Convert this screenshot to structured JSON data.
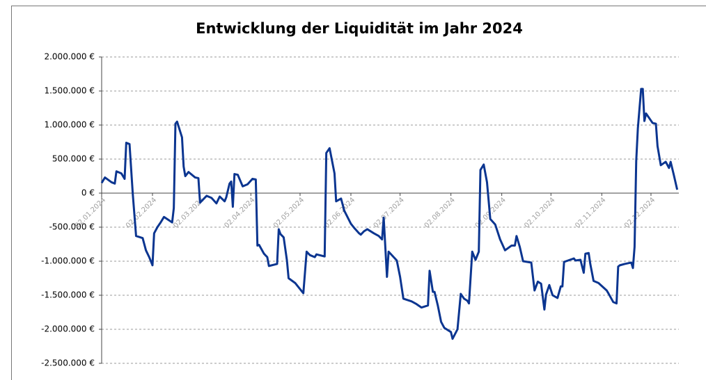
{
  "chart_data": {
    "type": "line",
    "title": "Entwicklung der Liquidität im Jahr 2024",
    "xlim": [
      "2024-01-02",
      "2024-12-19"
    ],
    "xticks": [
      {
        "value": "2024-01-02",
        "label": "02.01.2024"
      },
      {
        "value": "2024-02-02",
        "label": "02.02.2024"
      },
      {
        "value": "2024-03-02",
        "label": "02.03.2024"
      },
      {
        "value": "2024-04-02",
        "label": "02.04.2024"
      },
      {
        "value": "2024-05-02",
        "label": "02.05.2024"
      },
      {
        "value": "2024-06-02",
        "label": "02.06.2024"
      },
      {
        "value": "2024-07-02",
        "label": "02.07.2024"
      },
      {
        "value": "2024-08-02",
        "label": "02.08.2024"
      },
      {
        "value": "2024-09-02",
        "label": "02.09.2024"
      },
      {
        "value": "2024-10-02",
        "label": "02.10.2024"
      },
      {
        "value": "2024-11-02",
        "label": "02.11.2024"
      },
      {
        "value": "2024-12-02",
        "label": "02.12.2024"
      }
    ],
    "ylim": [
      -2500000,
      2000000
    ],
    "yticks": [
      {
        "value": 2000000,
        "label": "2.000.000 €"
      },
      {
        "value": 1500000,
        "label": "1.500.000 €"
      },
      {
        "value": 1000000,
        "label": "1.000.000 €"
      },
      {
        "value": 500000,
        "label": "500.000 €"
      },
      {
        "value": 0,
        "label": "0 €"
      },
      {
        "value": -500000,
        "label": "-500.000 €"
      },
      {
        "value": -1000000,
        "label": "-1.000.000 €"
      },
      {
        "value": -1500000,
        "label": "-1.500.000 €"
      },
      {
        "value": -2000000,
        "label": "-2.000.000 €"
      },
      {
        "value": -2500000,
        "label": "-2.500.000 €"
      }
    ],
    "grid": true,
    "x": [
      "2024-01-02",
      "2024-01-04",
      "2024-01-08",
      "2024-01-10",
      "2024-01-11",
      "2024-01-14",
      "2024-01-16",
      "2024-01-17",
      "2024-01-19",
      "2024-01-21",
      "2024-01-23",
      "2024-01-27",
      "2024-01-29",
      "2024-01-31",
      "2024-02-02",
      "2024-02-03",
      "2024-02-05",
      "2024-02-07",
      "2024-02-09",
      "2024-02-14",
      "2024-02-15",
      "2024-02-16",
      "2024-02-17",
      "2024-02-20",
      "2024-02-21",
      "2024-02-22",
      "2024-02-24",
      "2024-02-28",
      "2024-03-01",
      "2024-03-02",
      "2024-03-06",
      "2024-03-09",
      "2024-03-12",
      "2024-03-14",
      "2024-03-17",
      "2024-03-18",
      "2024-03-20",
      "2024-03-21",
      "2024-03-22",
      "2024-03-23",
      "2024-03-25",
      "2024-03-28",
      "2024-03-31",
      "2024-04-03",
      "2024-04-05",
      "2024-04-06",
      "2024-04-07",
      "2024-04-10",
      "2024-04-12",
      "2024-04-13",
      "2024-04-18",
      "2024-04-19",
      "2024-04-20",
      "2024-04-22",
      "2024-04-24",
      "2024-04-25",
      "2024-04-29",
      "2024-05-02",
      "2024-05-04",
      "2024-05-06",
      "2024-05-08",
      "2024-05-11",
      "2024-05-12",
      "2024-05-17",
      "2024-05-18",
      "2024-05-20",
      "2024-05-23",
      "2024-05-24",
      "2024-05-27",
      "2024-05-29",
      "2024-06-02",
      "2024-06-04",
      "2024-06-07",
      "2024-06-08",
      "2024-06-10",
      "2024-06-12",
      "2024-06-16",
      "2024-06-19",
      "2024-06-21",
      "2024-06-22",
      "2024-06-24",
      "2024-06-25",
      "2024-06-30",
      "2024-07-02",
      "2024-07-04",
      "2024-07-09",
      "2024-07-12",
      "2024-07-15",
      "2024-07-19",
      "2024-07-20",
      "2024-07-22",
      "2024-07-23",
      "2024-07-25",
      "2024-07-27",
      "2024-07-29",
      "2024-08-02",
      "2024-08-03",
      "2024-08-06",
      "2024-08-08",
      "2024-08-10",
      "2024-08-12",
      "2024-08-13",
      "2024-08-15",
      "2024-08-17",
      "2024-08-19",
      "2024-08-20",
      "2024-08-22",
      "2024-08-24",
      "2024-08-26",
      "2024-08-29",
      "2024-09-01",
      "2024-09-04",
      "2024-09-08",
      "2024-09-10",
      "2024-09-11",
      "2024-09-13",
      "2024-09-15",
      "2024-09-20",
      "2024-09-22",
      "2024-09-24",
      "2024-09-26",
      "2024-09-28",
      "2024-09-29",
      "2024-10-01",
      "2024-10-03",
      "2024-10-06",
      "2024-10-08",
      "2024-10-09",
      "2024-10-10",
      "2024-10-16",
      "2024-10-17",
      "2024-10-20",
      "2024-10-22",
      "2024-10-23",
      "2024-10-25",
      "2024-10-26",
      "2024-10-28",
      "2024-10-31",
      "2024-11-05",
      "2024-11-06",
      "2024-11-09",
      "2024-11-11",
      "2024-11-12",
      "2024-11-13",
      "2024-11-16",
      "2024-11-20",
      "2024-11-21",
      "2024-11-22",
      "2024-11-23",
      "2024-11-24",
      "2024-11-26",
      "2024-11-27",
      "2024-11-28",
      "2024-11-29",
      "2024-12-03",
      "2024-12-05",
      "2024-12-06",
      "2024-12-08",
      "2024-12-11",
      "2024-12-13",
      "2024-12-14",
      "2024-12-16",
      "2024-12-18"
    ],
    "series": [
      {
        "color": "#0b3590",
        "values": [
          150000,
          230000,
          160000,
          140000,
          320000,
          290000,
          210000,
          740000,
          720000,
          -20000,
          -630000,
          -660000,
          -840000,
          -940000,
          -1060000,
          -590000,
          -500000,
          -430000,
          -350000,
          -430000,
          -220000,
          1020000,
          1050000,
          820000,
          390000,
          250000,
          310000,
          230000,
          220000,
          -140000,
          -40000,
          -70000,
          -150000,
          -50000,
          -120000,
          -60000,
          140000,
          170000,
          -200000,
          280000,
          270000,
          100000,
          130000,
          210000,
          200000,
          -770000,
          -760000,
          -890000,
          -940000,
          -1070000,
          -1040000,
          -530000,
          -600000,
          -650000,
          -990000,
          -1250000,
          -1320000,
          -1410000,
          -1470000,
          -860000,
          -910000,
          -940000,
          -900000,
          -930000,
          590000,
          660000,
          290000,
          -120000,
          -80000,
          -260000,
          -450000,
          -510000,
          -590000,
          -610000,
          -560000,
          -530000,
          -590000,
          -630000,
          -680000,
          -360000,
          -1230000,
          -860000,
          -990000,
          -1230000,
          -1550000,
          -1590000,
          -1630000,
          -1680000,
          -1650000,
          -1140000,
          -1450000,
          -1450000,
          -1650000,
          -1890000,
          -1980000,
          -2040000,
          -2140000,
          -2000000,
          -1480000,
          -1550000,
          -1580000,
          -1620000,
          -860000,
          -980000,
          -860000,
          340000,
          420000,
          160000,
          -380000,
          -460000,
          -680000,
          -840000,
          -770000,
          -770000,
          -630000,
          -790000,
          -1000000,
          -1020000,
          -1430000,
          -1300000,
          -1330000,
          -1710000,
          -1490000,
          -1350000,
          -1500000,
          -1540000,
          -1370000,
          -1370000,
          -1010000,
          -960000,
          -990000,
          -980000,
          -1170000,
          -890000,
          -880000,
          -1040000,
          -1290000,
          -1320000,
          -1430000,
          -1470000,
          -1600000,
          -1620000,
          -1080000,
          -1060000,
          -1040000,
          -1020000,
          -1100000,
          -790000,
          470000,
          950000,
          1530000,
          1530000,
          1060000,
          1170000,
          1030000,
          1020000,
          690000,
          410000,
          460000,
          370000,
          460000,
          260000,
          50000
        ]
      }
    ]
  }
}
